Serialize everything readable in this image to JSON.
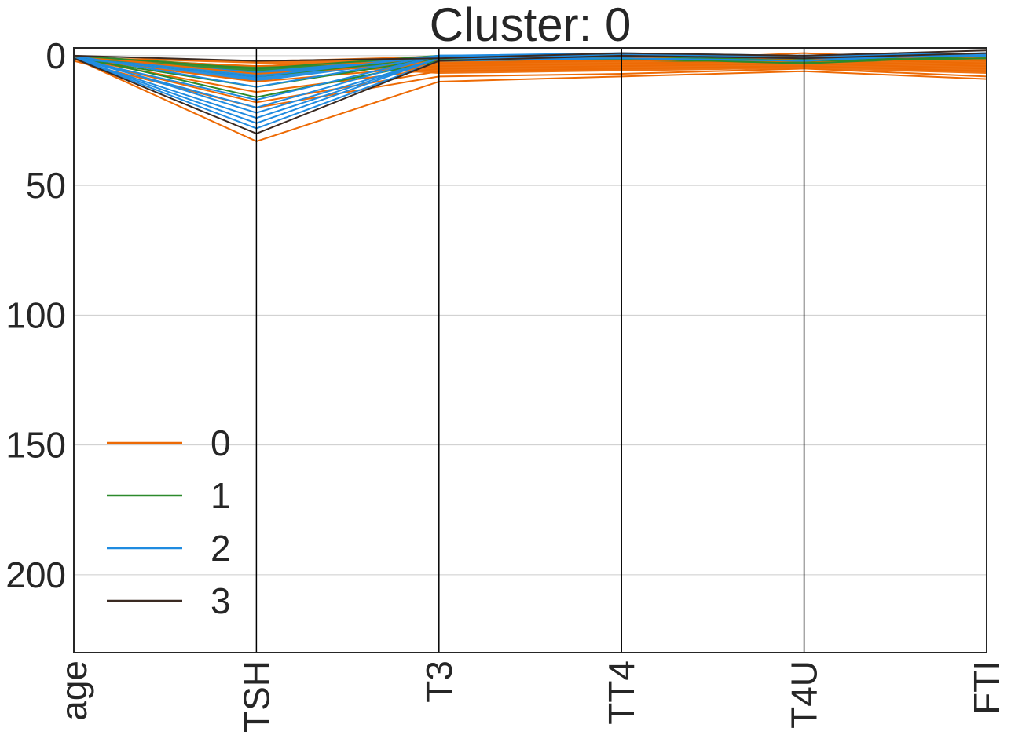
{
  "chart_data": {
    "type": "line",
    "title": "Cluster: 0",
    "categories": [
      "age",
      "TSH",
      "T3",
      "TT4",
      "T4U",
      "FTI"
    ],
    "yticks": [
      "0",
      "50",
      "100",
      "150",
      "200"
    ],
    "ylim": [
      230,
      -3
    ],
    "y_inverted": true,
    "grid": true,
    "legend": {
      "placement": "lower-left",
      "entries": [
        {
          "label": "0",
          "color": "#ed6a04"
        },
        {
          "label": "1",
          "color": "#2c8a2c"
        },
        {
          "label": "2",
          "color": "#1f8be0"
        },
        {
          "label": "3",
          "color": "#3a2a22"
        }
      ]
    },
    "series": [
      {
        "cluster": "0",
        "color": "#ed6a04",
        "values": [
          1,
          33,
          10,
          8,
          6,
          9
        ]
      },
      {
        "cluster": "0",
        "color": "#ed6a04",
        "values": [
          2,
          20,
          8,
          7,
          5,
          8
        ]
      },
      {
        "cluster": "0",
        "color": "#ed6a04",
        "values": [
          1,
          18,
          6,
          5,
          4,
          6
        ]
      },
      {
        "cluster": "0",
        "color": "#ed6a04",
        "values": [
          1,
          14,
          5,
          4,
          3,
          5
        ]
      },
      {
        "cluster": "0",
        "color": "#ed6a04",
        "values": [
          1,
          10,
          4,
          3,
          2,
          4
        ]
      },
      {
        "cluster": "0",
        "color": "#ed6a04",
        "values": [
          0,
          7,
          3,
          2,
          1,
          3
        ]
      },
      {
        "cluster": "0",
        "color": "#ed6a04",
        "values": [
          1,
          4,
          2,
          2,
          -1,
          2
        ]
      },
      {
        "cluster": "0",
        "color": "#ed6a04",
        "values": [
          1,
          2,
          1,
          1,
          0,
          1
        ]
      },
      {
        "cluster": "1",
        "color": "#2c8a2c",
        "values": [
          0,
          16,
          2,
          1,
          3,
          0
        ]
      },
      {
        "cluster": "1",
        "color": "#2c8a2c",
        "values": [
          1,
          12,
          1,
          1,
          2,
          1
        ]
      },
      {
        "cluster": "1",
        "color": "#2c8a2c",
        "values": [
          1,
          8,
          1,
          0,
          2,
          1
        ]
      },
      {
        "cluster": "1",
        "color": "#2c8a2c",
        "values": [
          0,
          5,
          0,
          0,
          1,
          0
        ]
      },
      {
        "cluster": "2",
        "color": "#1f8be0",
        "values": [
          1,
          28,
          2,
          1,
          2,
          -1
        ]
      },
      {
        "cluster": "2",
        "color": "#1f8be0",
        "values": [
          1,
          26,
          1,
          1,
          2,
          -1
        ]
      },
      {
        "cluster": "2",
        "color": "#1f8be0",
        "values": [
          1,
          24,
          1,
          0,
          1,
          -1
        ]
      },
      {
        "cluster": "2",
        "color": "#1f8be0",
        "values": [
          0,
          22,
          1,
          0,
          1,
          0
        ]
      },
      {
        "cluster": "2",
        "color": "#1f8be0",
        "values": [
          1,
          20,
          0,
          0,
          1,
          0
        ]
      },
      {
        "cluster": "2",
        "color": "#1f8be0",
        "values": [
          1,
          17,
          0,
          0,
          1,
          0
        ]
      },
      {
        "cluster": "2",
        "color": "#1f8be0",
        "values": [
          0,
          12,
          0,
          -1,
          0,
          0
        ]
      },
      {
        "cluster": "2",
        "color": "#1f8be0",
        "values": [
          1,
          8,
          0,
          0,
          0,
          -1
        ]
      },
      {
        "cluster": "3",
        "color": "#3a2a22",
        "values": [
          0,
          2,
          1,
          -1,
          0,
          -2
        ]
      },
      {
        "cluster": "3",
        "color": "#3a2a22",
        "values": [
          1,
          30,
          2,
          0,
          1,
          -1
        ]
      }
    ]
  }
}
